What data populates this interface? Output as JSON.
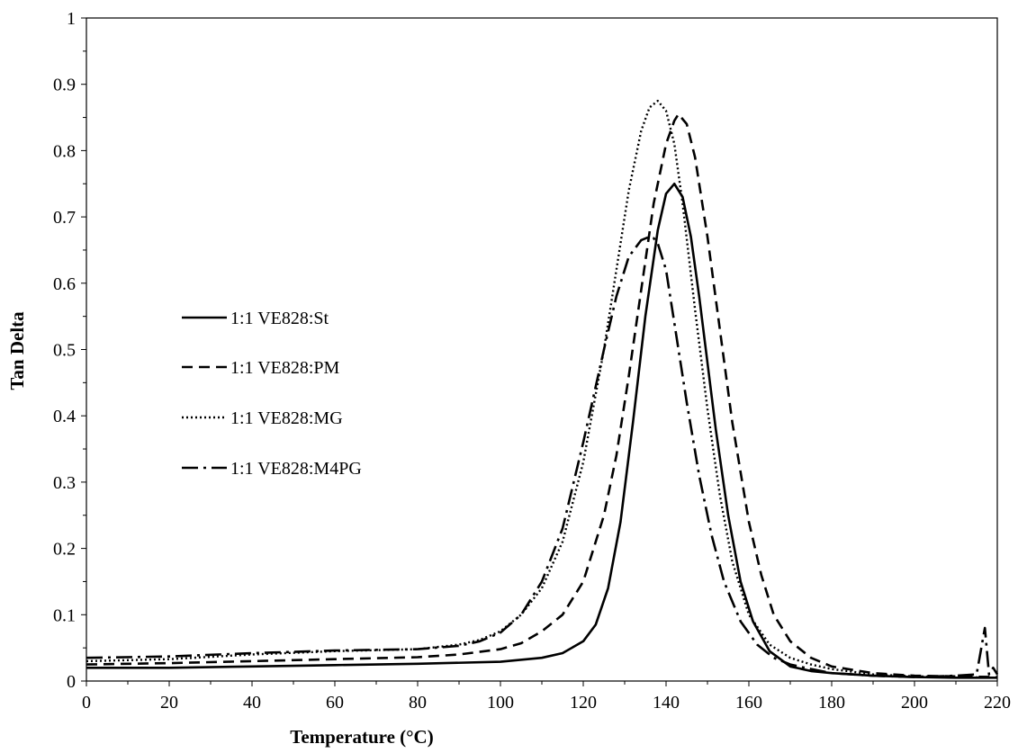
{
  "chart_data": {
    "type": "line",
    "title": "",
    "xlabel": "Temperature (°C)",
    "ylabel": "Tan Delta",
    "xlim": [
      0,
      220
    ],
    "ylim": [
      0,
      1
    ],
    "x_ticks": [
      0,
      20,
      40,
      60,
      80,
      100,
      120,
      140,
      160,
      180,
      200,
      220
    ],
    "y_ticks": [
      0,
      0.1,
      0.2,
      0.3,
      0.4,
      0.5,
      0.6,
      0.7,
      0.8,
      0.9,
      1
    ],
    "x_tick_labels": [
      "0",
      "20",
      "40",
      "60",
      "80",
      "100",
      "120",
      "140",
      "160",
      "180",
      "200",
      "220"
    ],
    "y_tick_labels": [
      "0",
      "0.1",
      "0.2",
      "0.3",
      "0.4",
      "0.5",
      "0.6",
      "0.7",
      "0.8",
      "0.9",
      "1"
    ],
    "grid": false,
    "legend_position": "left-middle",
    "series": [
      {
        "name": "1:1 VE828:St",
        "style": "solid",
        "color": "#000000",
        "x": [
          0,
          20,
          40,
          60,
          80,
          100,
          110,
          115,
          120,
          123,
          126,
          129,
          132,
          135,
          138,
          140,
          142,
          144,
          146,
          148,
          150,
          152,
          155,
          158,
          161,
          165,
          170,
          175,
          180,
          190,
          200,
          210,
          220
        ],
        "y": [
          0.02,
          0.02,
          0.022,
          0.024,
          0.026,
          0.029,
          0.035,
          0.042,
          0.06,
          0.085,
          0.14,
          0.24,
          0.39,
          0.55,
          0.68,
          0.735,
          0.75,
          0.73,
          0.67,
          0.58,
          0.48,
          0.38,
          0.25,
          0.15,
          0.09,
          0.045,
          0.022,
          0.015,
          0.012,
          0.008,
          0.006,
          0.005,
          0.005
        ]
      },
      {
        "name": "1:1 VE828:PM",
        "style": "dashed",
        "color": "#000000",
        "x": [
          0,
          20,
          40,
          60,
          80,
          90,
          100,
          105,
          110,
          115,
          120,
          125,
          128,
          131,
          134,
          137,
          140,
          142,
          143,
          145,
          147,
          150,
          153,
          156,
          160,
          163,
          166,
          170,
          175,
          180,
          190,
          200,
          210,
          220
        ],
        "y": [
          0.025,
          0.027,
          0.03,
          0.033,
          0.036,
          0.04,
          0.048,
          0.057,
          0.075,
          0.1,
          0.15,
          0.25,
          0.34,
          0.46,
          0.59,
          0.72,
          0.81,
          0.845,
          0.855,
          0.84,
          0.79,
          0.67,
          0.53,
          0.39,
          0.24,
          0.16,
          0.1,
          0.06,
          0.035,
          0.022,
          0.012,
          0.008,
          0.007,
          0.006
        ]
      },
      {
        "name": "1:1 VE828:MG",
        "style": "dotted",
        "color": "#000000",
        "x": [
          0,
          20,
          40,
          60,
          80,
          90,
          95,
          100,
          105,
          110,
          115,
          120,
          125,
          128,
          131,
          134,
          136,
          138,
          140,
          142,
          144,
          147,
          150,
          153,
          156,
          160,
          165,
          170,
          175,
          180,
          190,
          200,
          210,
          220
        ],
        "y": [
          0.03,
          0.033,
          0.04,
          0.045,
          0.048,
          0.055,
          0.062,
          0.075,
          0.1,
          0.14,
          0.21,
          0.33,
          0.5,
          0.62,
          0.74,
          0.83,
          0.865,
          0.875,
          0.86,
          0.81,
          0.72,
          0.56,
          0.41,
          0.28,
          0.18,
          0.1,
          0.055,
          0.035,
          0.025,
          0.018,
          0.01,
          0.007,
          0.006,
          0.005
        ]
      },
      {
        "name": "1:1 VE828:M4PG",
        "style": "dash-dot",
        "color": "#000000",
        "x": [
          0,
          20,
          40,
          60,
          80,
          90,
          95,
          100,
          105,
          110,
          115,
          120,
          125,
          128,
          131,
          134,
          136,
          137,
          138,
          140,
          142,
          145,
          148,
          151,
          154,
          158,
          162,
          166,
          170,
          175,
          180,
          190,
          200,
          210,
          215,
          217,
          218,
          219,
          220
        ],
        "y": [
          0.035,
          0.037,
          0.042,
          0.046,
          0.048,
          0.053,
          0.06,
          0.073,
          0.1,
          0.15,
          0.23,
          0.36,
          0.5,
          0.58,
          0.64,
          0.665,
          0.67,
          0.668,
          0.66,
          0.62,
          0.54,
          0.42,
          0.31,
          0.22,
          0.15,
          0.09,
          0.055,
          0.035,
          0.025,
          0.018,
          0.012,
          0.008,
          0.006,
          0.008,
          0.01,
          0.08,
          0.01,
          0.02,
          0.01
        ]
      }
    ]
  }
}
